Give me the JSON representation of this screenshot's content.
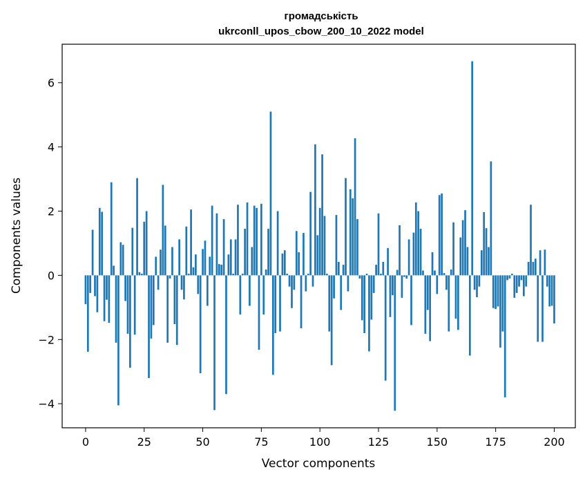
{
  "chart_data": {
    "type": "bar",
    "title": "громадськість",
    "subtitle": "ukrconll_upos_cbow_200_10_2022 model",
    "xlabel": "Vector components",
    "ylabel": "Components values",
    "xlim": [
      -10,
      209
    ],
    "ylim": [
      -4.75,
      7.2
    ],
    "xticks": [
      0,
      25,
      50,
      75,
      100,
      125,
      150,
      175,
      200
    ],
    "yticks": [
      -4,
      -2,
      0,
      2,
      4,
      6
    ],
    "xtick_labels": [
      "0",
      "25",
      "50",
      "75",
      "100",
      "125",
      "150",
      "175",
      "200"
    ],
    "ytick_labels": [
      "−4",
      "−2",
      "0",
      "2",
      "4",
      "6"
    ],
    "grid": false,
    "bar_color": "#1f77b4",
    "values": [
      -0.9,
      -2.38,
      -0.55,
      1.42,
      -0.65,
      -1.15,
      2.1,
      1.98,
      -1.43,
      -0.76,
      -1.48,
      2.9,
      0.3,
      -2.1,
      -4.05,
      1.03,
      0.95,
      -0.8,
      -1.82,
      -2.88,
      1.48,
      -1.85,
      3.03,
      0.1,
      0.05,
      1.67,
      2.0,
      -3.2,
      -1.97,
      -1.55,
      0.58,
      -0.45,
      0.8,
      2.82,
      1.55,
      -2.1,
      -0.1,
      0.88,
      -1.52,
      -2.17,
      1.12,
      -0.45,
      -0.75,
      1.52,
      0.05,
      2.05,
      0.25,
      0.65,
      -0.58,
      -3.05,
      0.82,
      1.08,
      -0.95,
      0.58,
      2.17,
      -4.2,
      1.93,
      0.35,
      0.33,
      1.75,
      -3.7,
      0.65,
      1.12,
      0.05,
      1.12,
      2.2,
      -1.22,
      0.05,
      1.45,
      2.27,
      -0.95,
      0.88,
      2.17,
      2.1,
      -2.32,
      2.23,
      -1.22,
      0.18,
      1.45,
      5.1,
      -3.1,
      -1.8,
      2.0,
      -1.75,
      0.68,
      0.78,
      0.05,
      -0.35,
      -1.02,
      -0.45,
      1.38,
      0.72,
      -1.65,
      1.32,
      -0.5,
      0.05,
      2.6,
      -0.35,
      4.08,
      1.25,
      2.1,
      3.77,
      1.85,
      0.05,
      -1.75,
      -2.8,
      -0.72,
      1.88,
      0.42,
      -1.08,
      0.33,
      3.03,
      -0.5,
      2.68,
      2.4,
      4.27,
      1.75,
      -0.1,
      -1.4,
      -1.8,
      0.05,
      -2.37,
      -1.38,
      -0.55,
      0.33,
      1.93,
      0.05,
      0.42,
      -3.28,
      0.85,
      -1.3,
      -0.62,
      -4.22,
      0.17,
      1.56,
      -0.7,
      -0.05,
      -0.1,
      1.12,
      -1.55,
      1.33,
      2.27,
      2.0,
      1.45,
      0.15,
      -1.82,
      -1.08,
      -2.05,
      0.72,
      0.15,
      -0.58,
      2.5,
      2.55,
      0.07,
      -0.45,
      -1.75,
      0.18,
      1.65,
      -1.35,
      -1.7,
      1.18,
      1.72,
      2.03,
      0.88,
      -2.5,
      6.67,
      -0.45,
      -0.68,
      -0.35,
      0.78,
      1.97,
      1.47,
      0.88,
      3.55,
      -1.02,
      -1.05,
      -0.97,
      -2.25,
      -1.75,
      -3.8,
      -0.15,
      -0.1,
      0.05,
      -0.7,
      -0.55,
      -0.35,
      -0.15,
      -0.65,
      -0.35,
      0.42,
      2.2,
      0.42,
      0.52,
      -2.07,
      0.78,
      -2.07,
      0.8,
      -0.35,
      -0.97,
      -0.95,
      -1.5
    ]
  }
}
